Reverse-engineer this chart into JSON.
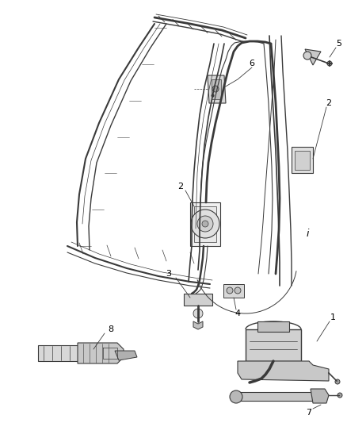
{
  "background_color": "#ffffff",
  "line_color": "#3a3a3a",
  "label_color": "#000000",
  "label_fontsize": 8,
  "fig_width": 4.38,
  "fig_height": 5.33,
  "dpi": 100
}
